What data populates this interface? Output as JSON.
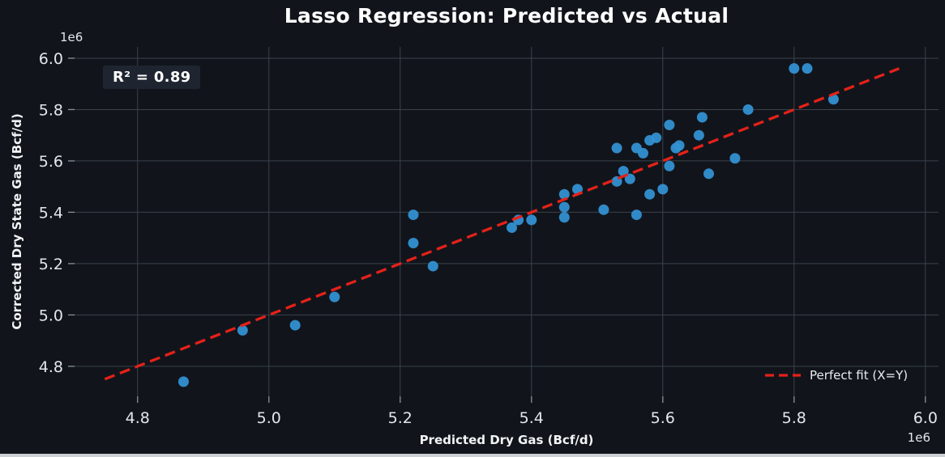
{
  "figure": {
    "background": "#11151b",
    "bottom_edge_color": "#cdd0d3"
  },
  "chart_data": {
    "type": "scatter",
    "title": "Lasso Regression: Predicted vs Actual",
    "xlabel": "Predicted Dry Gas (Bcf/d)",
    "ylabel": "Corrected Dry State Gas (Bcf/d)",
    "x_offset_text": "1e6",
    "y_offset_text": "1e6",
    "x_ticks": [
      4.8,
      5.0,
      5.2,
      5.4,
      5.6,
      5.8,
      6.0
    ],
    "y_ticks": [
      4.8,
      5.0,
      5.2,
      5.4,
      5.6,
      5.8,
      6.0
    ],
    "xlim": [
      4.704,
      6.02
    ],
    "ylim": [
      4.683,
      6.044
    ],
    "grid": true,
    "annotation": {
      "text": "R² = 0.89"
    },
    "legend": {
      "position": "lower right",
      "entries": [
        {
          "label": "Perfect fit (X=Y)",
          "color": "#e52119",
          "style": "dashed"
        }
      ]
    },
    "colors": {
      "background": "#11151b",
      "grid": "#3b424b",
      "tick_mark": "#8b9199",
      "tick_label": "#e3e7ec",
      "text": "#ffffff",
      "marker": "#3490d2",
      "line": "#e52119",
      "annotation_bg": "#1f2530"
    },
    "series": [
      {
        "name": "predicted-vs-actual-points",
        "type": "scatter",
        "color": "#3490d2",
        "marker_radius": 6.5,
        "points": [
          [
            4.87,
            4.74
          ],
          [
            4.96,
            4.94
          ],
          [
            5.04,
            4.96
          ],
          [
            5.1,
            5.07
          ],
          [
            5.22,
            5.39
          ],
          [
            5.22,
            5.28
          ],
          [
            5.25,
            5.19
          ],
          [
            5.37,
            5.34
          ],
          [
            5.38,
            5.37
          ],
          [
            5.4,
            5.37
          ],
          [
            5.45,
            5.47
          ],
          [
            5.45,
            5.42
          ],
          [
            5.45,
            5.38
          ],
          [
            5.47,
            5.49
          ],
          [
            5.51,
            5.41
          ],
          [
            5.53,
            5.65
          ],
          [
            5.53,
            5.52
          ],
          [
            5.54,
            5.56
          ],
          [
            5.55,
            5.53
          ],
          [
            5.56,
            5.39
          ],
          [
            5.56,
            5.65
          ],
          [
            5.57,
            5.63
          ],
          [
            5.58,
            5.68
          ],
          [
            5.58,
            5.47
          ],
          [
            5.59,
            5.69
          ],
          [
            5.6,
            5.49
          ],
          [
            5.61,
            5.74
          ],
          [
            5.61,
            5.58
          ],
          [
            5.62,
            5.65
          ],
          [
            5.625,
            5.66
          ],
          [
            5.655,
            5.7
          ],
          [
            5.66,
            5.77
          ],
          [
            5.67,
            5.55
          ],
          [
            5.71,
            5.61
          ],
          [
            5.73,
            5.8
          ],
          [
            5.8,
            5.96
          ],
          [
            5.82,
            5.96
          ],
          [
            5.86,
            5.84
          ]
        ]
      },
      {
        "name": "perfect-fit-line",
        "type": "line",
        "label": "Perfect fit (X=Y)",
        "color": "#e52119",
        "style": "dashed",
        "x": [
          4.75,
          5.96
        ],
        "y": [
          4.75,
          5.96
        ]
      }
    ]
  }
}
